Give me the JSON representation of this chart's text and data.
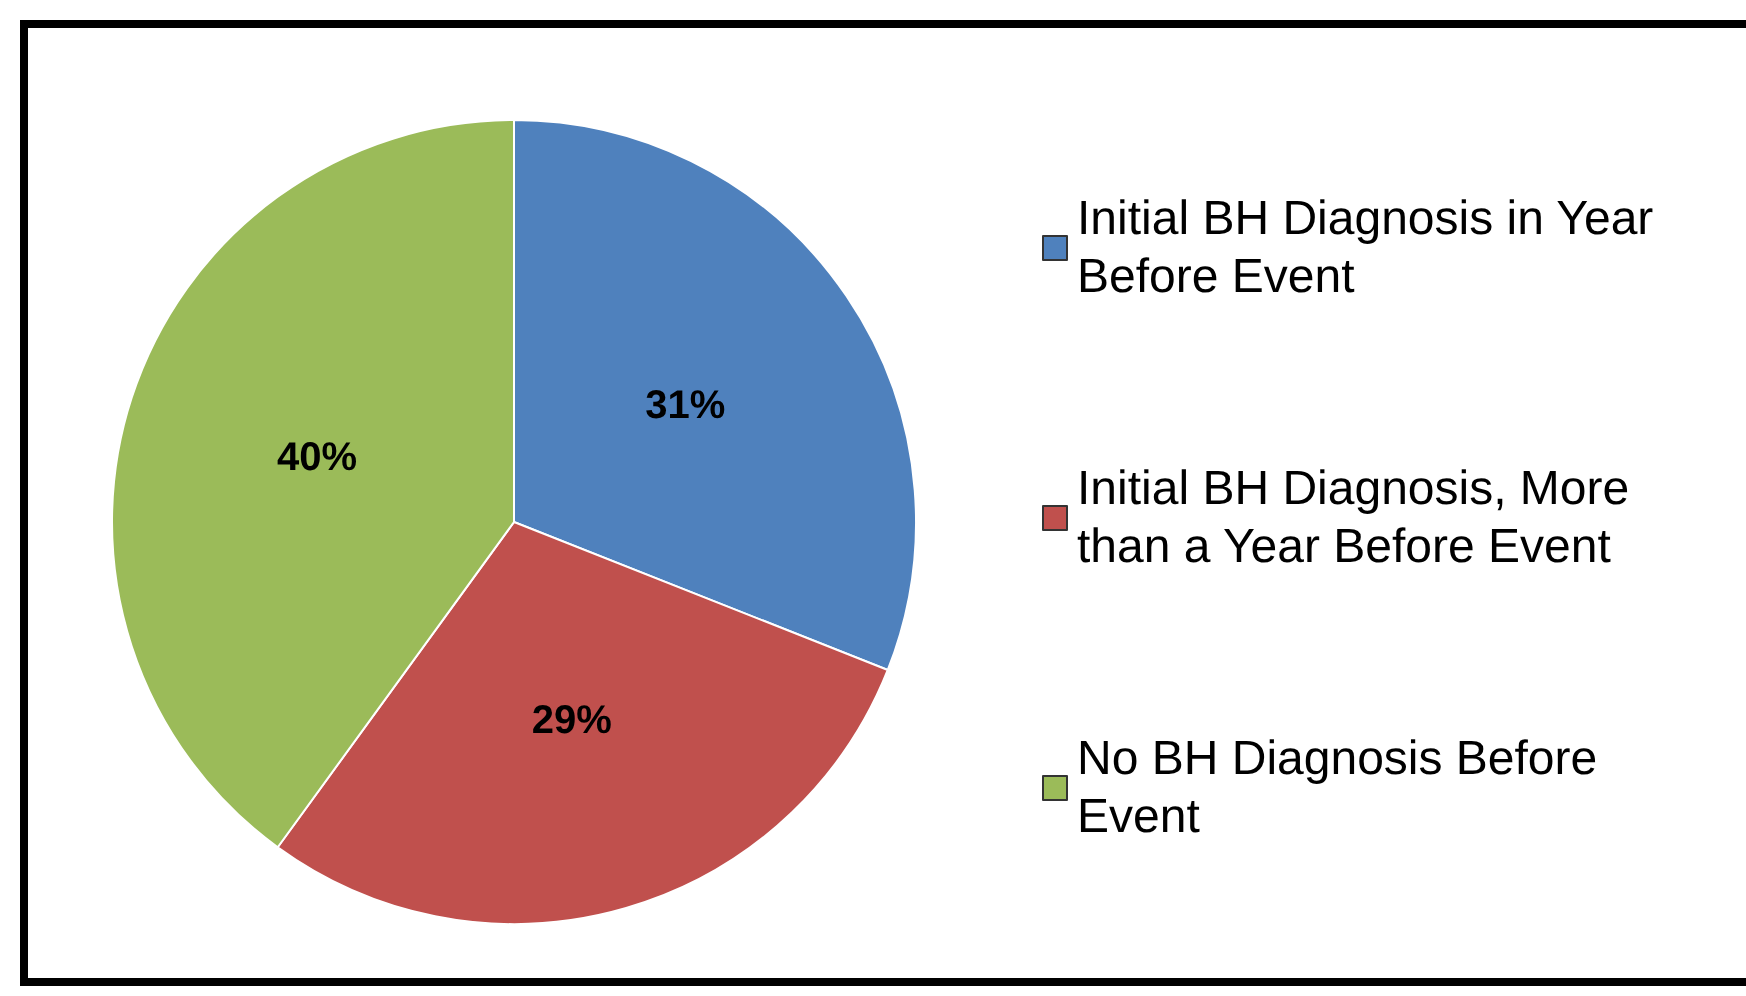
{
  "chart_data": {
    "type": "pie",
    "categories": [
      "Initial BH Diagnosis in Year Before Event",
      "Initial BH Diagnosis, More than a Year Before Event",
      "No BH Diagnosis Before Event"
    ],
    "values": [
      31,
      29,
      40
    ],
    "colors": [
      "#4f81bd",
      "#c0504d",
      "#9bbb59"
    ],
    "value_labels": [
      "31%",
      "29%",
      "40%"
    ],
    "legend": "right"
  }
}
